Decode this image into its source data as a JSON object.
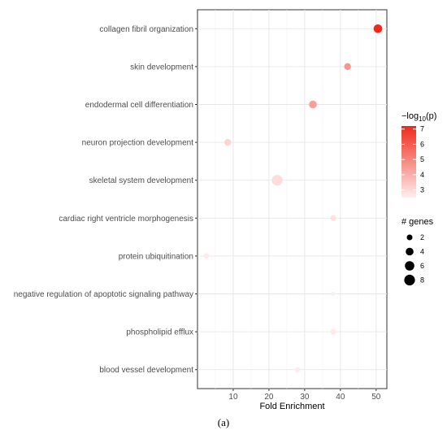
{
  "chart_data": {
    "type": "scatter",
    "title": "",
    "xlabel": "Fold Enrichment",
    "ylabel": "",
    "xlim": [
      0,
      53
    ],
    "xticks": [
      10,
      20,
      30,
      40,
      50
    ],
    "categories": [
      "collagen fibril organization",
      "skin development",
      "endodermal cell differentiation",
      "neuron projection development",
      "skeletal system development",
      "cardiac right ventricle morphogenesis",
      "protein ubiquitination",
      "negative regulation of apoptotic signaling pathway",
      "phospholipid efflux",
      "blood vessel development"
    ],
    "points": [
      {
        "term": "collagen fibril organization",
        "fold_enrichment": 50.5,
        "neg_log10_p": 7.2,
        "genes": 5
      },
      {
        "term": "skin development",
        "fold_enrichment": 42,
        "neg_log10_p": 4.6,
        "genes": 3
      },
      {
        "term": "endodermal cell differentiation",
        "fold_enrichment": 32.3,
        "neg_log10_p": 4.4,
        "genes": 4
      },
      {
        "term": "neuron projection development",
        "fold_enrichment": 8.5,
        "neg_log10_p": 3.1,
        "genes": 3
      },
      {
        "term": "skeletal system development",
        "fold_enrichment": 22.3,
        "neg_log10_p": 2.9,
        "genes": 8
      },
      {
        "term": "cardiac right ventricle morphogenesis",
        "fold_enrichment": 38,
        "neg_log10_p": 2.8,
        "genes": 2
      },
      {
        "term": "protein ubiquitination",
        "fold_enrichment": 2.5,
        "neg_log10_p": 2.6,
        "genes": 2
      },
      {
        "term": "negative regulation of apoptotic signaling pathway",
        "fold_enrichment": 38,
        "neg_log10_p": 2.5,
        "genes": 1
      },
      {
        "term": "phospholipid efflux",
        "fold_enrichment": 38,
        "neg_log10_p": 2.6,
        "genes": 2
      },
      {
        "term": "blood vessel development",
        "fold_enrichment": 28,
        "neg_log10_p": 2.5,
        "genes": 2
      }
    ],
    "color_legend": {
      "title_prefix": "−log",
      "title_sub": "10",
      "title_suffix": "(p)",
      "ticks": [
        3,
        4,
        5,
        6,
        7
      ],
      "range": [
        2.5,
        7.2
      ],
      "low_color": "#fdeeee",
      "high_color": "#ee2a1a"
    },
    "size_legend": {
      "title": "# genes",
      "values": [
        2,
        4,
        6,
        8
      ]
    },
    "grid": true,
    "legend_position": "right"
  },
  "caption": "(a)"
}
